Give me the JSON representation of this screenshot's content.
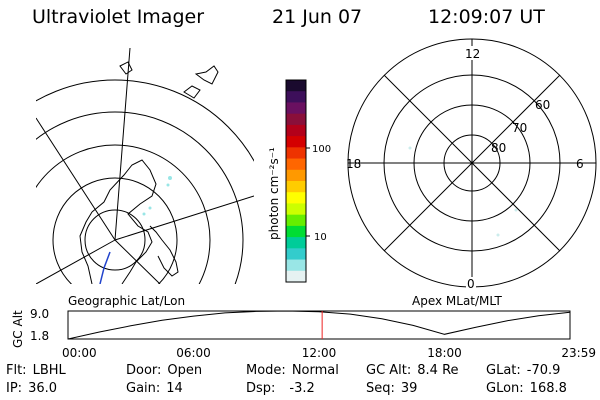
{
  "header": {
    "instrument": "Ultraviolet Imager",
    "date": "21 Jun 07",
    "time": "12:09:07 UT"
  },
  "left_panel": {
    "label": "Geographic Lat/Lon"
  },
  "right_panel": {
    "label": "Apex MLat/MLT",
    "mlt_labels": [
      "12",
      "18",
      "6",
      "0"
    ],
    "lat_labels": [
      "60",
      "70",
      "80"
    ]
  },
  "colorbar": {
    "label": "photon cm⁻²s⁻¹",
    "ticks": [
      "100",
      "10"
    ],
    "colors": [
      "#1a0a2e",
      "#3d0f5a",
      "#6a1060",
      "#8a0f3a",
      "#b3001a",
      "#d40000",
      "#ee3300",
      "#ff6600",
      "#ff9900",
      "#ffcc00",
      "#ffff00",
      "#ccff00",
      "#66ee00",
      "#00dd33",
      "#00cc99",
      "#33cccc",
      "#99e6e6",
      "#e6f2f2"
    ]
  },
  "altitude_plot": {
    "ylabel": "GC Alt",
    "y_ticks": [
      "9.0",
      "1.8"
    ],
    "x_ticks": [
      "00:00",
      "06:00",
      "12:00",
      "18:00",
      "23:59"
    ],
    "current_marker_hour": 12.15,
    "line_color": "#000000",
    "marker_color": "#ee2222"
  },
  "chart_data": {
    "type": "line",
    "title": "",
    "xlabel": "",
    "ylabel": "GC Alt",
    "ylim": [
      1.8,
      9.0
    ],
    "x": [
      0,
      1.5,
      3,
      4.5,
      6,
      7.5,
      9,
      10.5,
      12,
      13.5,
      15,
      16.5,
      18,
      19.5,
      21,
      22.5,
      24
    ],
    "series": [
      {
        "values": [
          1.8,
          3.6,
          5.2,
          6.6,
          7.7,
          8.5,
          8.9,
          9.0,
          8.8,
          8.2,
          7.0,
          5.3,
          3.0,
          4.8,
          6.5,
          7.8,
          8.7
        ]
      }
    ]
  },
  "info": {
    "flt_label": "Flt:",
    "flt_value": "LBHL",
    "ip_label": "IP:",
    "ip_value": "36.0",
    "door_label": "Door:",
    "door_value": "Open",
    "gain_label": "Gain:",
    "gain_value": "14",
    "mode_label": "Mode:",
    "mode_value": "Normal",
    "dsp_label": "Dsp:",
    "dsp_value": "-3.2",
    "gcalt_label": "GC Alt:",
    "gcalt_value": "8.4 Re",
    "seq_label": "Seq:",
    "seq_value": "39",
    "glat_label": "GLat:",
    "glat_value": "-70.9",
    "glon_label": "GLon:",
    "glon_value": "168.8"
  }
}
